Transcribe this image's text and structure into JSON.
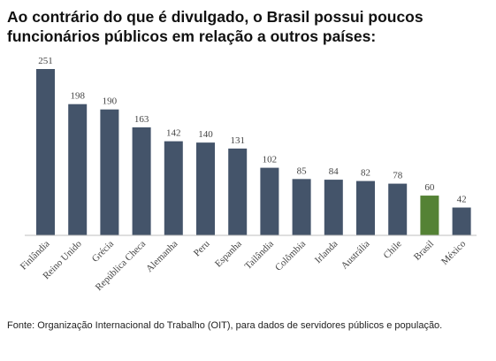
{
  "header": {
    "line1": "Ao contrário do que é divulgado, o Brasil possui poucos",
    "line2": "funcionários públicos em relação a outros países:"
  },
  "footer": {
    "source": "Fonte: Organização Internacional do Trabalho (OIT), para dados de servidores públicos e população."
  },
  "chart_data": {
    "type": "bar",
    "title": "",
    "xlabel": "",
    "ylabel": "",
    "categories": [
      "Finlândia",
      "Reino Unido",
      "Grécia",
      "República Checa",
      "Alemanha",
      "Peru",
      "Espanha",
      "Tailândia",
      "Colômbia",
      "Irlanda",
      "Austrália",
      "Chile",
      "Brasil",
      "México"
    ],
    "values": [
      251,
      198,
      190,
      163,
      142,
      140,
      131,
      102,
      85,
      84,
      82,
      78,
      60,
      42
    ],
    "ylim": [
      0,
      251
    ],
    "grid": false,
    "legend": "none",
    "colors": {
      "default": "#44546a",
      "highlight": "#548235",
      "highlight_category": "Brasil",
      "axis": "#bfbfbf"
    }
  }
}
